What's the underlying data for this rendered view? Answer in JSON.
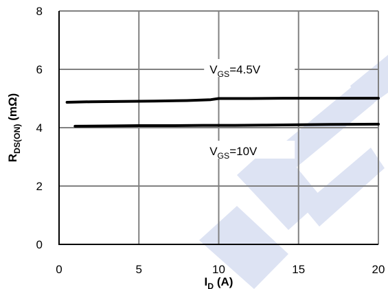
{
  "chart_data": {
    "type": "line",
    "title": "",
    "xlabel": {
      "main": "I",
      "sub": "D",
      "rest": " (A)"
    },
    "ylabel": {
      "main": "R",
      "sub": "DS(ON)",
      "rest": " (mΩ)"
    },
    "xlim": [
      0,
      20
    ],
    "ylim": [
      0,
      8
    ],
    "xticks": [
      0,
      5,
      10,
      15,
      20
    ],
    "yticks": [
      0,
      2,
      4,
      6,
      8
    ],
    "grid": true,
    "series": [
      {
        "name": {
          "main": "V",
          "sub": "GS",
          "rest": "=4.5V"
        },
        "label_at": [
          9.6,
          6.0
        ],
        "x": [
          0.5,
          2,
          4,
          6,
          8,
          9.5,
          10,
          12,
          14,
          16,
          18,
          20
        ],
        "y": [
          4.87,
          4.89,
          4.9,
          4.91,
          4.93,
          4.96,
          5.0,
          5.0,
          5.01,
          5.01,
          5.01,
          5.01
        ]
      },
      {
        "name": {
          "main": "V",
          "sub": "GS",
          "rest": "=10V"
        },
        "label_at": [
          9.6,
          3.2
        ],
        "x": [
          1,
          3,
          5,
          7,
          9,
          11,
          13,
          15,
          17,
          20
        ],
        "y": [
          4.05,
          4.06,
          4.07,
          4.07,
          4.08,
          4.08,
          4.09,
          4.1,
          4.11,
          4.12
        ]
      }
    ],
    "colors": {
      "line": "#000000",
      "grid": "#808080",
      "watermark": "#dde3f3"
    }
  }
}
